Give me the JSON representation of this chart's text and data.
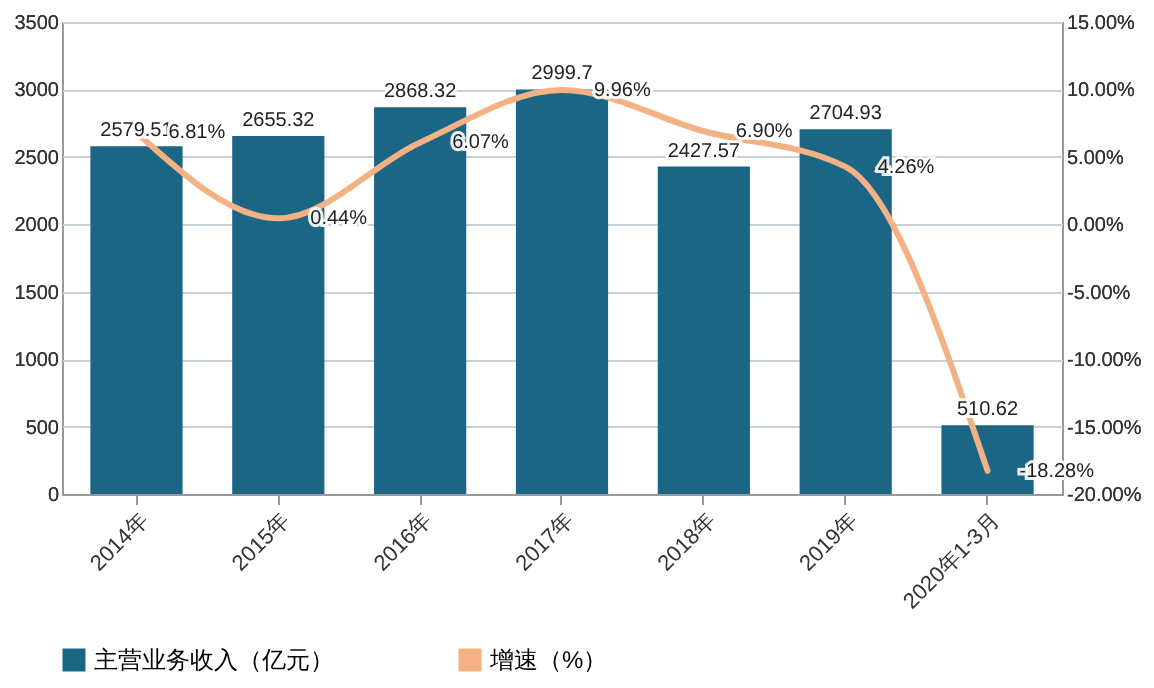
{
  "chart_data": {
    "type": "bar",
    "categories": [
      "2014年",
      "2015年",
      "2016年",
      "2017年",
      "2018年",
      "2019年",
      "2020年1-3月"
    ],
    "series": [
      {
        "name": "主营业务收入（亿元）",
        "color": "#1b6585",
        "values": [
          2579.51,
          2655.32,
          2868.32,
          2999.7,
          2427.57,
          2704.93,
          510.62
        ],
        "value_labels": [
          "2579.51",
          "2655.32",
          "2868.32",
          "2999.7",
          "2427.57",
          "2704.93",
          "510.62"
        ]
      },
      {
        "name": "增速（%）",
        "type": "line",
        "axis": "y2",
        "color": "#f4b183",
        "values": [
          6.81,
          0.44,
          6.07,
          9.96,
          6.9,
          4.26,
          -18.28
        ],
        "value_labels": [
          "6.81%",
          "0.44%",
          "6.07%",
          "9.96%",
          "6.90%",
          "4.26%",
          "-18.28%"
        ]
      }
    ],
    "ylim": [
      0,
      3500
    ],
    "yticks": [
      0,
      500,
      1000,
      1500,
      2000,
      2500,
      3000,
      3500
    ],
    "y2lim": [
      -20,
      15
    ],
    "y2ticks": [
      {
        "value": -20,
        "label": "-20.00%"
      },
      {
        "value": -15,
        "label": "-15.00%"
      },
      {
        "value": -10,
        "label": "-10.00%"
      },
      {
        "value": -5,
        "label": "-5.00%"
      },
      {
        "value": 0,
        "label": "0.00%"
      },
      {
        "value": 5,
        "label": "5.00%"
      },
      {
        "value": 10,
        "label": "10.00%"
      },
      {
        "value": 15,
        "label": "15.00%"
      }
    ],
    "grid": "y",
    "legend": "bottom",
    "marker": "none",
    "line_style": "solid"
  }
}
